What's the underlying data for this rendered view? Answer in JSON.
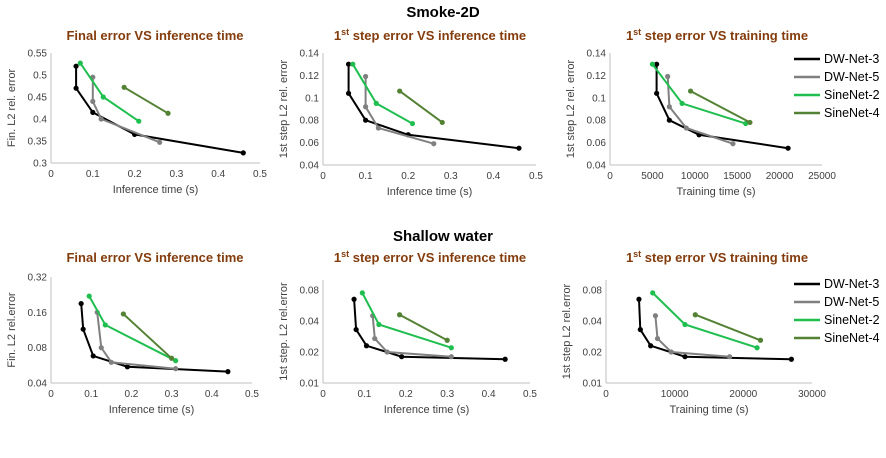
{
  "sections": [
    {
      "title": "Smoke-2D"
    },
    {
      "title": "Shallow water"
    }
  ],
  "colors": {
    "DW-Net-3": "#000000",
    "DW-Net-5": "#808080",
    "SineNet-2": "#1fbf4f",
    "SineNet-4": "#548235",
    "title": "#843c0c"
  },
  "legend": [
    "DW-Net-3",
    "DW-Net-5",
    "SineNet-2",
    "SineNet-4"
  ],
  "chart_data": [
    {
      "type": "line",
      "section": "Smoke-2D",
      "title": "Final error VS inference time",
      "xlabel": "Inference time (s)",
      "ylabel": "Fin. L2 rel. error",
      "xlim": [
        0,
        0.5
      ],
      "xticks": [
        "0",
        "0.1",
        "0.2",
        "0.3",
        "0.4",
        "0.5"
      ],
      "ylim": [
        0.3,
        0.55
      ],
      "yticks": [
        "0.3",
        "0.35",
        "0.4",
        "0.45",
        "0.5",
        "0.55"
      ],
      "log": false,
      "series": [
        {
          "name": "DW-Net-3",
          "x": [
            0.06,
            0.06,
            0.1,
            0.2,
            0.46
          ],
          "y": [
            0.52,
            0.47,
            0.415,
            0.365,
            0.323
          ]
        },
        {
          "name": "DW-Net-5",
          "x": [
            0.1,
            0.1,
            0.12,
            0.26
          ],
          "y": [
            0.495,
            0.44,
            0.4,
            0.347
          ]
        },
        {
          "name": "SineNet-2",
          "x": [
            0.07,
            0.125,
            0.21
          ],
          "y": [
            0.527,
            0.45,
            0.395
          ]
        },
        {
          "name": "SineNet-4",
          "x": [
            0.175,
            0.28
          ],
          "y": [
            0.472,
            0.413
          ]
        }
      ]
    },
    {
      "type": "line",
      "section": "Smoke-2D",
      "title": "1st step error VS inference time",
      "title_sup": "st",
      "xlabel": "Inference time (s)",
      "ylabel": "1st step L2 rel. error",
      "xlim": [
        0,
        0.5
      ],
      "xticks": [
        "0",
        "0.1",
        "0.2",
        "0.3",
        "0.4",
        "0.5"
      ],
      "ylim": [
        0.04,
        0.14
      ],
      "yticks": [
        "0.04",
        "0.06",
        "0.08",
        "0.1",
        "0.12",
        "0.14"
      ],
      "log": false,
      "series": [
        {
          "name": "DW-Net-3",
          "x": [
            0.06,
            0.06,
            0.1,
            0.2,
            0.46
          ],
          "y": [
            0.13,
            0.104,
            0.08,
            0.067,
            0.055
          ]
        },
        {
          "name": "DW-Net-5",
          "x": [
            0.1,
            0.1,
            0.13,
            0.26
          ],
          "y": [
            0.119,
            0.092,
            0.073,
            0.059
          ]
        },
        {
          "name": "SineNet-2",
          "x": [
            0.07,
            0.125,
            0.21
          ],
          "y": [
            0.13,
            0.095,
            0.077
          ]
        },
        {
          "name": "SineNet-4",
          "x": [
            0.18,
            0.28
          ],
          "y": [
            0.106,
            0.078
          ]
        }
      ]
    },
    {
      "type": "line",
      "section": "Smoke-2D",
      "title": "1st step error VS training time",
      "title_sup": "st",
      "xlabel": "Training time (s)",
      "ylabel": "1st step L2 rel. error",
      "xlim": [
        0,
        25000
      ],
      "xticks": [
        "0",
        "5000",
        "10000",
        "15000",
        "20000",
        "25000"
      ],
      "ylim": [
        0.04,
        0.14
      ],
      "yticks": [
        "0.04",
        "0.06",
        "0.08",
        "0.1",
        "0.12",
        "0.14"
      ],
      "log": false,
      "series": [
        {
          "name": "DW-Net-3",
          "x": [
            5500,
            5500,
            7000,
            10500,
            21000
          ],
          "y": [
            0.13,
            0.104,
            0.08,
            0.067,
            0.055
          ]
        },
        {
          "name": "DW-Net-5",
          "x": [
            6800,
            7000,
            9000,
            14500
          ],
          "y": [
            0.119,
            0.092,
            0.073,
            0.059
          ]
        },
        {
          "name": "SineNet-2",
          "x": [
            5000,
            8500,
            16000
          ],
          "y": [
            0.13,
            0.095,
            0.077
          ]
        },
        {
          "name": "SineNet-4",
          "x": [
            9500,
            16500
          ],
          "y": [
            0.106,
            0.078
          ]
        }
      ]
    },
    {
      "type": "line",
      "section": "Shallow water",
      "title": "Final error VS inference time",
      "xlabel": "Inference time (s)",
      "ylabel": "Fin. L2 rel.error",
      "xlim": [
        0,
        0.5
      ],
      "xticks": [
        "0",
        "0.1",
        "0.2",
        "0.3",
        "0.4",
        "0.5"
      ],
      "ylim": [
        0.04,
        0.32
      ],
      "yticks": [
        "0.04",
        "0.08",
        "0.16",
        "0.32"
      ],
      "log": true,
      "series": [
        {
          "name": "DW-Net-3",
          "x": [
            0.075,
            0.08,
            0.105,
            0.19,
            0.44
          ],
          "y": [
            0.19,
            0.115,
            0.068,
            0.055,
            0.05
          ]
        },
        {
          "name": "DW-Net-5",
          "x": [
            0.115,
            0.125,
            0.15,
            0.31
          ],
          "y": [
            0.16,
            0.08,
            0.06,
            0.053
          ]
        },
        {
          "name": "SineNet-2",
          "x": [
            0.095,
            0.135,
            0.31
          ],
          "y": [
            0.22,
            0.125,
            0.062
          ]
        },
        {
          "name": "SineNet-4",
          "x": [
            0.18,
            0.3
          ],
          "y": [
            0.155,
            0.065
          ]
        }
      ]
    },
    {
      "type": "line",
      "section": "Shallow water",
      "title": "1st step error VS inference time",
      "title_sup": "st",
      "xlabel": "Inference time (s)",
      "ylabel": "1st step. L2 rel.error",
      "xlim": [
        0,
        0.5
      ],
      "xticks": [
        "0",
        "0.1",
        "0.2",
        "0.3",
        "0.4",
        "0.5"
      ],
      "ylim": [
        0.01,
        0.1
      ],
      "yticks": [
        "0.01",
        "0.02",
        "0.04",
        "0.08"
      ],
      "log": true,
      "series": [
        {
          "name": "DW-Net-3",
          "x": [
            0.075,
            0.08,
            0.105,
            0.19,
            0.44
          ],
          "y": [
            0.065,
            0.033,
            0.023,
            0.018,
            0.017
          ]
        },
        {
          "name": "DW-Net-5",
          "x": [
            0.12,
            0.125,
            0.155,
            0.31
          ],
          "y": [
            0.045,
            0.027,
            0.02,
            0.018
          ]
        },
        {
          "name": "SineNet-2",
          "x": [
            0.095,
            0.135,
            0.31
          ],
          "y": [
            0.075,
            0.037,
            0.022
          ]
        },
        {
          "name": "SineNet-4",
          "x": [
            0.185,
            0.3
          ],
          "y": [
            0.046,
            0.026
          ]
        }
      ]
    },
    {
      "type": "line",
      "section": "Shallow water",
      "title": "1st step error VS training time",
      "title_sup": "st",
      "xlabel": "Training time (s)",
      "ylabel": "1st step L2 rel.error",
      "xlim": [
        0,
        30000
      ],
      "xticks": [
        "0",
        "10000",
        "20000",
        "30000"
      ],
      "ylim": [
        0.01,
        0.1
      ],
      "yticks": [
        "0.01",
        "0.02",
        "0.04",
        "0.08"
      ],
      "log": true,
      "series": [
        {
          "name": "DW-Net-3",
          "x": [
            4800,
            5000,
            6500,
            11500,
            27000
          ],
          "y": [
            0.065,
            0.033,
            0.023,
            0.018,
            0.017
          ]
        },
        {
          "name": "DW-Net-5",
          "x": [
            7200,
            7500,
            9500,
            18000
          ],
          "y": [
            0.045,
            0.027,
            0.02,
            0.018
          ]
        },
        {
          "name": "SineNet-2",
          "x": [
            6800,
            11500,
            22000
          ],
          "y": [
            0.075,
            0.037,
            0.022
          ]
        },
        {
          "name": "SineNet-4",
          "x": [
            13000,
            22500
          ],
          "y": [
            0.046,
            0.026
          ]
        }
      ]
    }
  ]
}
